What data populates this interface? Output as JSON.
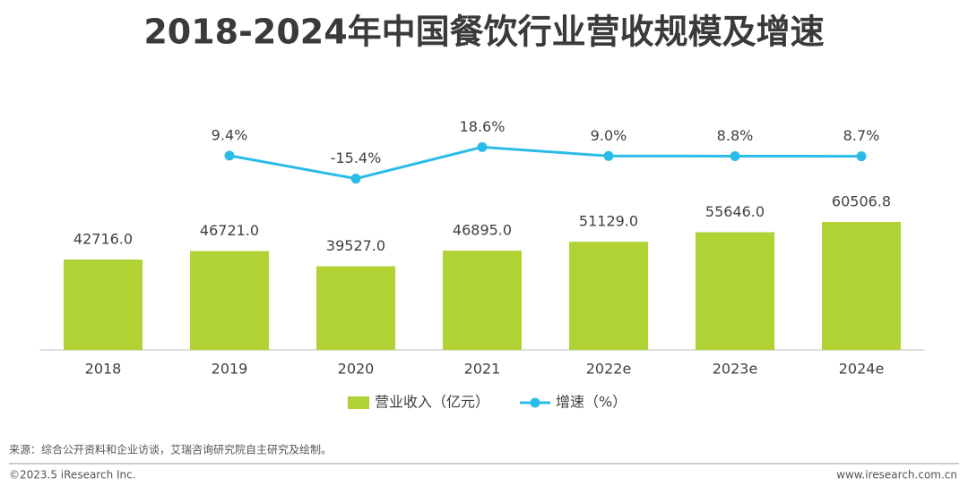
{
  "chart_data": {
    "type": "combo",
    "title": "2018-2024年中国餐饮行业营收规模及增速",
    "categories": [
      "2018",
      "2019",
      "2020",
      "2021",
      "2022e",
      "2023e",
      "2024e"
    ],
    "series": [
      {
        "name": "营业收入（亿元）",
        "type": "bar",
        "color": "#b0d235",
        "values": [
          42716,
          46721,
          39527,
          46895,
          51129,
          55646,
          60506.8
        ],
        "value_labels": [
          "42716.0",
          "46721.0",
          "39527.0",
          "46895.0",
          "51129.0",
          "55646.0",
          "60506.8"
        ]
      },
      {
        "name": "增速（%）",
        "type": "line",
        "axis": "y2",
        "color": "#2bbbe8",
        "values": [
          null,
          9.4,
          -15.4,
          18.6,
          9.0,
          8.8,
          8.7
        ],
        "value_labels": [
          null,
          "9.4%",
          "-15.4%",
          "18.6%",
          "9.0%",
          "8.8%",
          "8.7%"
        ]
      }
    ],
    "ylim": [
      0,
      100000
    ],
    "y2lim": [
      -200,
      28
    ],
    "legend": "bottom"
  },
  "footer": {
    "source": "来源：综合公开资料和企业访谈，艾瑞咨询研究院自主研究及绘制。",
    "copyright": "©2023.5 iResearch Inc.",
    "website": "www.iresearch.com.cn"
  }
}
